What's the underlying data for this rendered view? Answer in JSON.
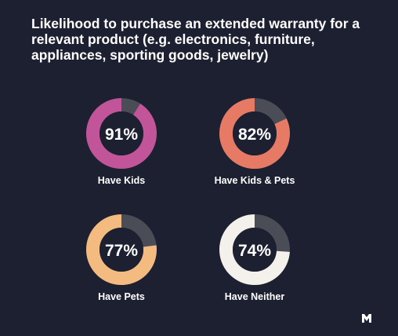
{
  "title": "Likelihood to purchase an extended warranty for a relevant product (e.g. electronics, furniture, appliances, sporting goods, jewelry)",
  "colors": {
    "background": "#1c2030",
    "track": "#4a4d56",
    "center": "#1c2030",
    "text": "#ffffff"
  },
  "chart_data": {
    "type": "donut",
    "unit": "%",
    "values": [
      {
        "label": "Have Kids",
        "value": 91,
        "display": "91%",
        "color": "#c2549a"
      },
      {
        "label": "Have Kids & Pets",
        "value": 82,
        "display": "82%",
        "color": "#e77a64"
      },
      {
        "label": "Have Pets",
        "value": 77,
        "display": "77%",
        "color": "#f4bb80"
      },
      {
        "label": "Have Neither",
        "value": 74,
        "display": "74%",
        "color": "#f4f1ec"
      }
    ]
  },
  "logo": {
    "icon": "brand-logo-icon"
  }
}
